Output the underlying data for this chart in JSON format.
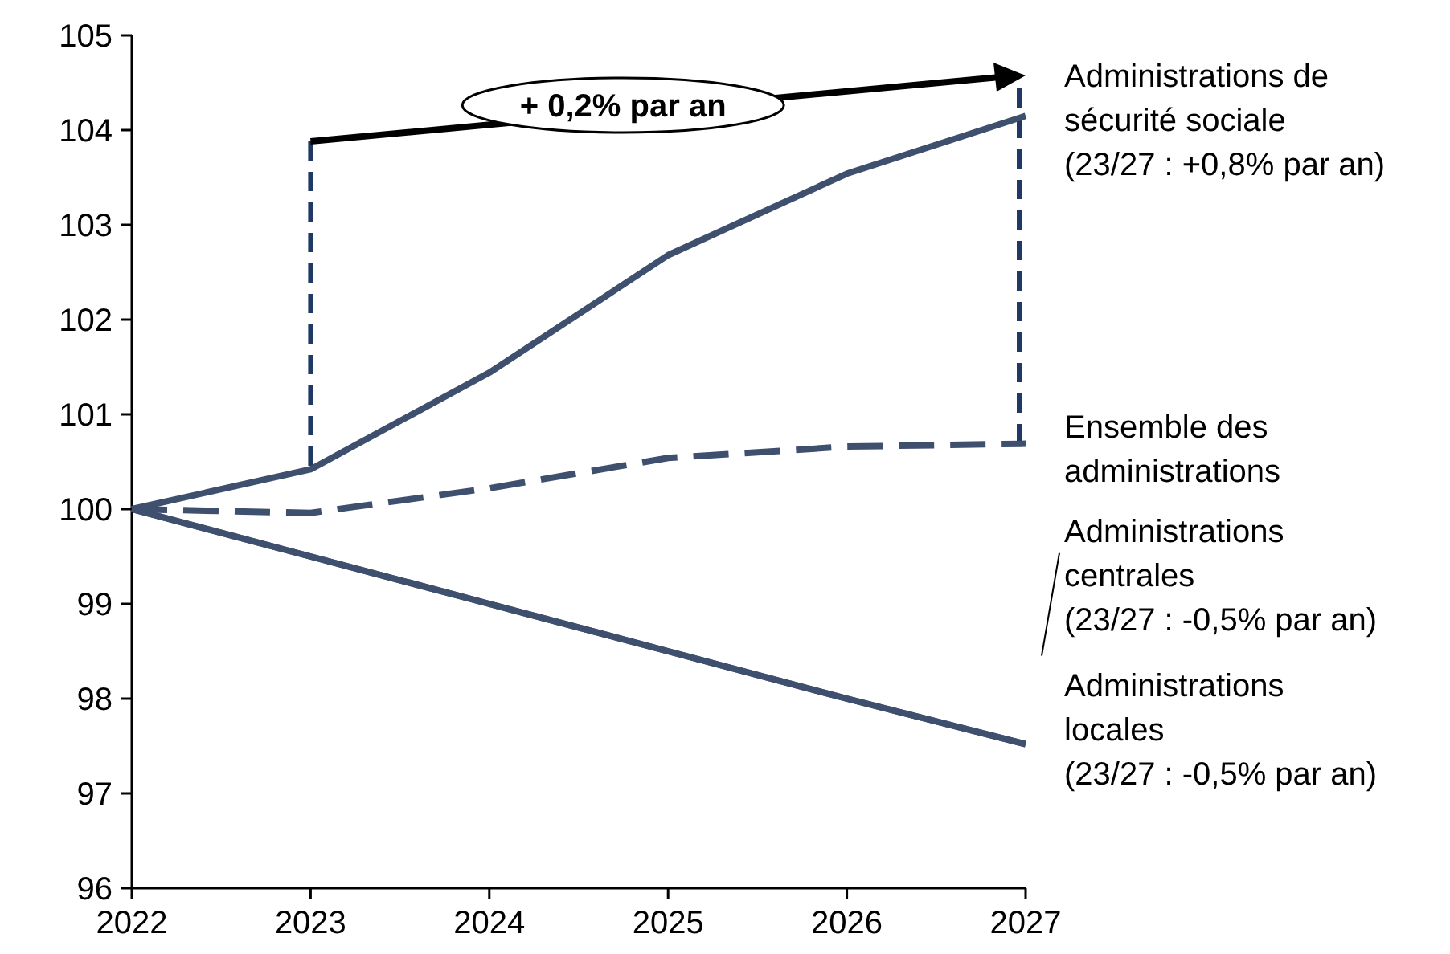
{
  "chart_data": {
    "type": "line",
    "x": [
      2022,
      2023,
      2024,
      2025,
      2026,
      2027
    ],
    "xlim": [
      2022,
      2027
    ],
    "xticks": [
      2022,
      2023,
      2024,
      2025,
      2026,
      2027
    ],
    "ylim": [
      96,
      105
    ],
    "yticks": [
      96,
      97,
      98,
      99,
      100,
      101,
      102,
      103,
      104,
      105
    ],
    "grid": false,
    "series": [
      {
        "name": "Administrations de\nsécurité sociale\n(23/27 : +0,8% par an)",
        "color": "#3f4f6e",
        "line_style": "solid",
        "values": [
          100,
          100.42,
          101.44,
          102.68,
          103.54,
          104.15
        ]
      },
      {
        "name": "Ensemble des\nadministrations",
        "color": "#3f4f6e",
        "line_style": "dashed",
        "values": [
          100,
          99.96,
          100.22,
          100.54,
          100.66,
          100.69
        ]
      },
      {
        "name": "Administrations\ncentrales\n(23/27 : -0,5% par an)",
        "color": "#3f4f6e",
        "line_style": "solid",
        "values": [
          100,
          99.5,
          99.0,
          98.5,
          98.0,
          97.52
        ]
      },
      {
        "name": "Administrations\nlocales\n(23/27 : -0,5% par an)",
        "color": "#3f4f6e",
        "line_style": "solid",
        "values": [
          100,
          99.5,
          99.0,
          98.5,
          98.0,
          97.52
        ]
      }
    ],
    "annotations": [
      "+ 0,2% par an"
    ]
  }
}
